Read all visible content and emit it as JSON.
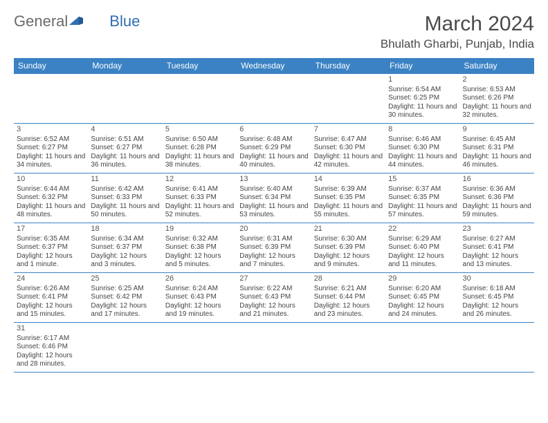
{
  "logo": {
    "text_general": "General",
    "text_blue": "Blue"
  },
  "title": "March 2024",
  "location": "Bhulath Gharbi, Punjab, India",
  "colors": {
    "header_bg": "#3a82c4",
    "header_text": "#ffffff",
    "border": "#3a82c4",
    "body_text": "#444444",
    "logo_gray": "#6b6b6b",
    "logo_blue": "#2f6fb0",
    "page_bg": "#ffffff"
  },
  "typography": {
    "title_fontsize": 30,
    "location_fontsize": 17,
    "dayheader_fontsize": 12,
    "cell_fontsize": 10,
    "font_family": "Arial"
  },
  "day_headers": [
    "Sunday",
    "Monday",
    "Tuesday",
    "Wednesday",
    "Thursday",
    "Friday",
    "Saturday"
  ],
  "weeks": [
    [
      null,
      null,
      null,
      null,
      null,
      {
        "n": "1",
        "sr": "Sunrise: 6:54 AM",
        "ss": "Sunset: 6:25 PM",
        "dl": "Daylight: 11 hours and 30 minutes."
      },
      {
        "n": "2",
        "sr": "Sunrise: 6:53 AM",
        "ss": "Sunset: 6:26 PM",
        "dl": "Daylight: 11 hours and 32 minutes."
      }
    ],
    [
      {
        "n": "3",
        "sr": "Sunrise: 6:52 AM",
        "ss": "Sunset: 6:27 PM",
        "dl": "Daylight: 11 hours and 34 minutes."
      },
      {
        "n": "4",
        "sr": "Sunrise: 6:51 AM",
        "ss": "Sunset: 6:27 PM",
        "dl": "Daylight: 11 hours and 36 minutes."
      },
      {
        "n": "5",
        "sr": "Sunrise: 6:50 AM",
        "ss": "Sunset: 6:28 PM",
        "dl": "Daylight: 11 hours and 38 minutes."
      },
      {
        "n": "6",
        "sr": "Sunrise: 6:48 AM",
        "ss": "Sunset: 6:29 PM",
        "dl": "Daylight: 11 hours and 40 minutes."
      },
      {
        "n": "7",
        "sr": "Sunrise: 6:47 AM",
        "ss": "Sunset: 6:30 PM",
        "dl": "Daylight: 11 hours and 42 minutes."
      },
      {
        "n": "8",
        "sr": "Sunrise: 6:46 AM",
        "ss": "Sunset: 6:30 PM",
        "dl": "Daylight: 11 hours and 44 minutes."
      },
      {
        "n": "9",
        "sr": "Sunrise: 6:45 AM",
        "ss": "Sunset: 6:31 PM",
        "dl": "Daylight: 11 hours and 46 minutes."
      }
    ],
    [
      {
        "n": "10",
        "sr": "Sunrise: 6:44 AM",
        "ss": "Sunset: 6:32 PM",
        "dl": "Daylight: 11 hours and 48 minutes."
      },
      {
        "n": "11",
        "sr": "Sunrise: 6:42 AM",
        "ss": "Sunset: 6:33 PM",
        "dl": "Daylight: 11 hours and 50 minutes."
      },
      {
        "n": "12",
        "sr": "Sunrise: 6:41 AM",
        "ss": "Sunset: 6:33 PM",
        "dl": "Daylight: 11 hours and 52 minutes."
      },
      {
        "n": "13",
        "sr": "Sunrise: 6:40 AM",
        "ss": "Sunset: 6:34 PM",
        "dl": "Daylight: 11 hours and 53 minutes."
      },
      {
        "n": "14",
        "sr": "Sunrise: 6:39 AM",
        "ss": "Sunset: 6:35 PM",
        "dl": "Daylight: 11 hours and 55 minutes."
      },
      {
        "n": "15",
        "sr": "Sunrise: 6:37 AM",
        "ss": "Sunset: 6:35 PM",
        "dl": "Daylight: 11 hours and 57 minutes."
      },
      {
        "n": "16",
        "sr": "Sunrise: 6:36 AM",
        "ss": "Sunset: 6:36 PM",
        "dl": "Daylight: 11 hours and 59 minutes."
      }
    ],
    [
      {
        "n": "17",
        "sr": "Sunrise: 6:35 AM",
        "ss": "Sunset: 6:37 PM",
        "dl": "Daylight: 12 hours and 1 minute."
      },
      {
        "n": "18",
        "sr": "Sunrise: 6:34 AM",
        "ss": "Sunset: 6:37 PM",
        "dl": "Daylight: 12 hours and 3 minutes."
      },
      {
        "n": "19",
        "sr": "Sunrise: 6:32 AM",
        "ss": "Sunset: 6:38 PM",
        "dl": "Daylight: 12 hours and 5 minutes."
      },
      {
        "n": "20",
        "sr": "Sunrise: 6:31 AM",
        "ss": "Sunset: 6:39 PM",
        "dl": "Daylight: 12 hours and 7 minutes."
      },
      {
        "n": "21",
        "sr": "Sunrise: 6:30 AM",
        "ss": "Sunset: 6:39 PM",
        "dl": "Daylight: 12 hours and 9 minutes."
      },
      {
        "n": "22",
        "sr": "Sunrise: 6:29 AM",
        "ss": "Sunset: 6:40 PM",
        "dl": "Daylight: 12 hours and 11 minutes."
      },
      {
        "n": "23",
        "sr": "Sunrise: 6:27 AM",
        "ss": "Sunset: 6:41 PM",
        "dl": "Daylight: 12 hours and 13 minutes."
      }
    ],
    [
      {
        "n": "24",
        "sr": "Sunrise: 6:26 AM",
        "ss": "Sunset: 6:41 PM",
        "dl": "Daylight: 12 hours and 15 minutes."
      },
      {
        "n": "25",
        "sr": "Sunrise: 6:25 AM",
        "ss": "Sunset: 6:42 PM",
        "dl": "Daylight: 12 hours and 17 minutes."
      },
      {
        "n": "26",
        "sr": "Sunrise: 6:24 AM",
        "ss": "Sunset: 6:43 PM",
        "dl": "Daylight: 12 hours and 19 minutes."
      },
      {
        "n": "27",
        "sr": "Sunrise: 6:22 AM",
        "ss": "Sunset: 6:43 PM",
        "dl": "Daylight: 12 hours and 21 minutes."
      },
      {
        "n": "28",
        "sr": "Sunrise: 6:21 AM",
        "ss": "Sunset: 6:44 PM",
        "dl": "Daylight: 12 hours and 23 minutes."
      },
      {
        "n": "29",
        "sr": "Sunrise: 6:20 AM",
        "ss": "Sunset: 6:45 PM",
        "dl": "Daylight: 12 hours and 24 minutes."
      },
      {
        "n": "30",
        "sr": "Sunrise: 6:18 AM",
        "ss": "Sunset: 6:45 PM",
        "dl": "Daylight: 12 hours and 26 minutes."
      }
    ],
    [
      {
        "n": "31",
        "sr": "Sunrise: 6:17 AM",
        "ss": "Sunset: 6:46 PM",
        "dl": "Daylight: 12 hours and 28 minutes."
      },
      null,
      null,
      null,
      null,
      null,
      null
    ]
  ]
}
